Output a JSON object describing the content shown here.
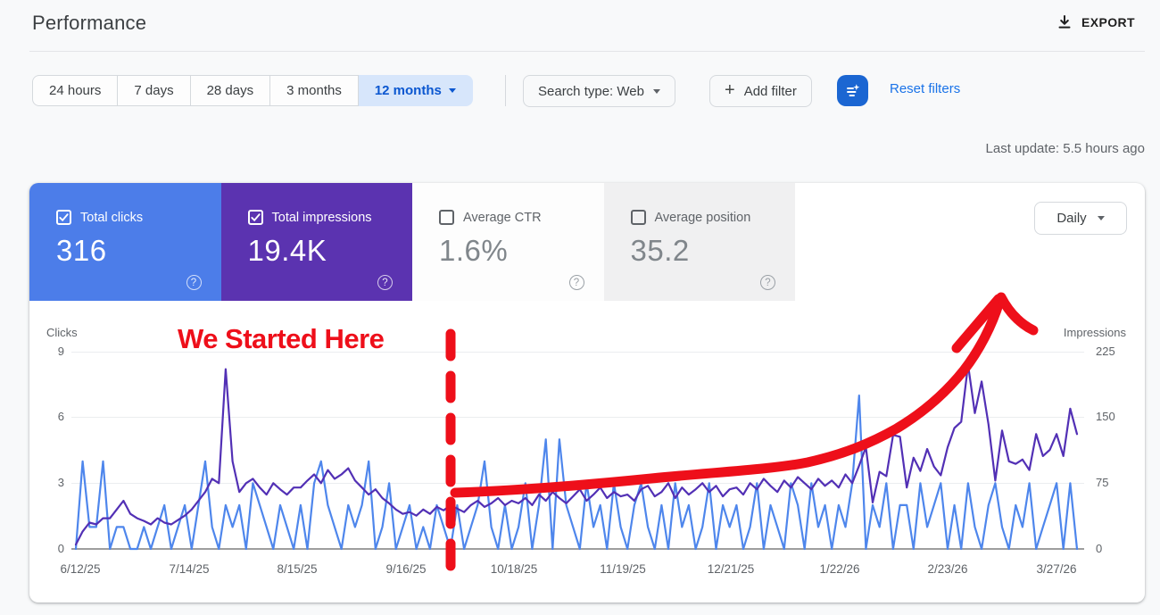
{
  "header": {
    "title": "Performance",
    "export_label": "EXPORT"
  },
  "filters": {
    "time_tabs": [
      {
        "label": "24 hours",
        "selected": false
      },
      {
        "label": "7 days",
        "selected": false
      },
      {
        "label": "28 days",
        "selected": false
      },
      {
        "label": "3 months",
        "selected": false
      },
      {
        "label": "12 months",
        "selected": true
      }
    ],
    "search_type_label": "Search type: Web",
    "add_filter_label": "Add filter",
    "ai_filter_icon": "filter-sparkle-icon",
    "reset_label": "Reset filters"
  },
  "last_update": "Last update: 5.5 hours ago",
  "metric_cards": [
    {
      "label": "Total clicks",
      "value": "316",
      "selected": true,
      "color": "#4c7de9"
    },
    {
      "label": "Total impressions",
      "value": "19.4K",
      "selected": true,
      "color": "#5b33b0"
    },
    {
      "label": "Average CTR",
      "value": "1.6%",
      "selected": false,
      "color": "#fdfdfd"
    },
    {
      "label": "Average position",
      "value": "35.2",
      "selected": false,
      "color": "#f0f0f1"
    }
  ],
  "granularity": {
    "label": "Daily"
  },
  "annotation": {
    "text": "We Started Here",
    "color": "#ee0f1a"
  },
  "chart_data": {
    "type": "line",
    "title": "Clicks and impressions over time (daily)",
    "legend_position": "none",
    "grid": "horizontal",
    "left_axis": {
      "label": "Clicks",
      "ticks": [
        9,
        6,
        3,
        0
      ],
      "max": 9
    },
    "right_axis": {
      "label": "Impressions",
      "ticks": [
        225,
        150,
        75,
        0
      ],
      "max": 225
    },
    "x_labels": [
      "6/12/25",
      "7/14/25",
      "8/15/25",
      "9/16/25",
      "10/18/25",
      "11/19/25",
      "12/21/25",
      "1/22/26",
      "2/23/26",
      "3/27/26"
    ],
    "series": [
      {
        "name": "Clicks",
        "axis": "left",
        "color": "#4e86ec",
        "values": [
          0,
          4,
          1,
          1,
          4,
          0,
          1,
          1,
          0,
          0,
          1,
          0,
          1,
          2,
          0,
          1,
          2,
          0,
          2,
          4,
          1,
          0,
          2,
          1,
          2,
          0,
          3,
          2,
          1,
          0,
          2,
          1,
          0,
          2,
          0,
          3,
          4,
          2,
          1,
          0,
          2,
          1,
          2,
          4,
          0,
          1,
          3,
          0,
          1,
          2,
          0,
          1,
          0,
          2,
          1,
          0,
          2,
          0,
          1,
          2,
          4,
          1,
          0,
          2,
          0,
          1,
          3,
          0,
          2,
          5,
          0,
          5,
          2,
          1,
          0,
          3,
          1,
          2,
          0,
          3,
          1,
          0,
          2,
          3,
          1,
          0,
          2,
          0,
          3,
          1,
          2,
          0,
          1,
          3,
          0,
          2,
          1,
          2,
          0,
          1,
          3,
          0,
          2,
          1,
          0,
          3,
          2,
          0,
          3,
          1,
          2,
          0,
          2,
          1,
          3,
          7,
          0,
          2,
          1,
          3,
          0,
          2,
          2,
          0,
          3,
          1,
          2,
          3,
          0,
          2,
          0,
          3,
          1,
          0,
          2,
          3,
          1,
          0,
          2,
          1,
          3,
          0,
          1,
          2,
          3,
          0,
          3,
          0
        ]
      },
      {
        "name": "Impressions",
        "axis": "right",
        "color": "#5230b5",
        "values": [
          5,
          20,
          30,
          28,
          35,
          35,
          45,
          55,
          40,
          35,
          32,
          28,
          35,
          30,
          28,
          33,
          38,
          45,
          55,
          65,
          80,
          75,
          205,
          100,
          65,
          75,
          80,
          70,
          62,
          75,
          68,
          62,
          70,
          70,
          78,
          85,
          75,
          90,
          80,
          85,
          92,
          78,
          70,
          62,
          68,
          58,
          52,
          45,
          40,
          42,
          38,
          45,
          40,
          48,
          44,
          50,
          46,
          42,
          50,
          55,
          48,
          52,
          58,
          50,
          55,
          52,
          58,
          50,
          62,
          55,
          65,
          58,
          52,
          60,
          68,
          55,
          62,
          70,
          58,
          65,
          60,
          62,
          55,
          68,
          72,
          60,
          65,
          75,
          58,
          70,
          62,
          68,
          75,
          65,
          72,
          60,
          68,
          70,
          62,
          75,
          68,
          80,
          72,
          65,
          78,
          70,
          82,
          75,
          68,
          80,
          72,
          78,
          70,
          85,
          75,
          95,
          116,
          53,
          88,
          83,
          130,
          128,
          70,
          104,
          89,
          114,
          94,
          84,
          116,
          138,
          145,
          210,
          155,
          191,
          142,
          78,
          135,
          100,
          97,
          102,
          90,
          131,
          106,
          113,
          131,
          106,
          160,
          131
        ]
      }
    ]
  }
}
